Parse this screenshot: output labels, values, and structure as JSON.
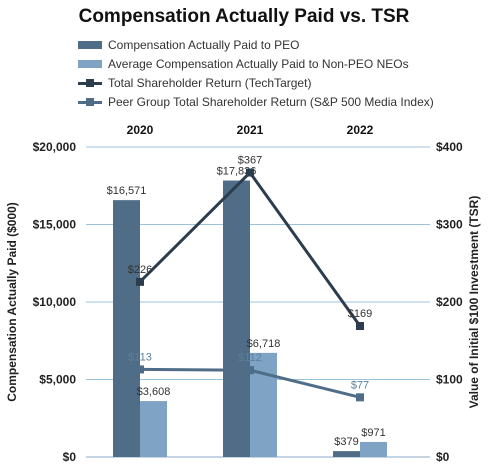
{
  "chart_data": {
    "type": "bar",
    "title": "Compensation Actually Paid vs. TSR",
    "categories": [
      "2020",
      "2021",
      "2022"
    ],
    "ylabel": "Compensation Actually Paid ($000)",
    "y2label": "Value of Initial $100 Investment (TSR)",
    "ylim": [
      0,
      20000
    ],
    "y2lim": [
      0,
      400
    ],
    "yticks": [
      "$0",
      "$5,000",
      "$10,000",
      "$15,000",
      "$20,000"
    ],
    "y2ticks": [
      "$0",
      "$100",
      "$200",
      "$300",
      "$400"
    ],
    "grid": true,
    "legend_position": "top",
    "bar_series": [
      {
        "name": "Compensation Actually Paid to PEO",
        "values": [
          16571,
          17836,
          379
        ],
        "labels": [
          "$16,571",
          "$17,836",
          "$379"
        ],
        "color": "#4f6d87"
      },
      {
        "name": "Average Compensation Actually Paid to Non-PEO NEOs",
        "values": [
          3608,
          6718,
          971
        ],
        "labels": [
          "$3,608",
          "$6,718",
          "$971"
        ],
        "color": "#7ea3c4"
      }
    ],
    "line_series": [
      {
        "name": "Total Shareholder Return (TechTarget)",
        "values": [
          226,
          367,
          169
        ],
        "labels": [
          "$226",
          "$367",
          "$169"
        ],
        "color": "#2c3d4e"
      },
      {
        "name": "Peer Group Total Shareholder Return (S&P 500 Media Index)",
        "values": [
          113,
          112,
          77
        ],
        "labels": [
          "$113",
          "$112",
          "$77"
        ],
        "color": "#4f6d87"
      }
    ]
  }
}
